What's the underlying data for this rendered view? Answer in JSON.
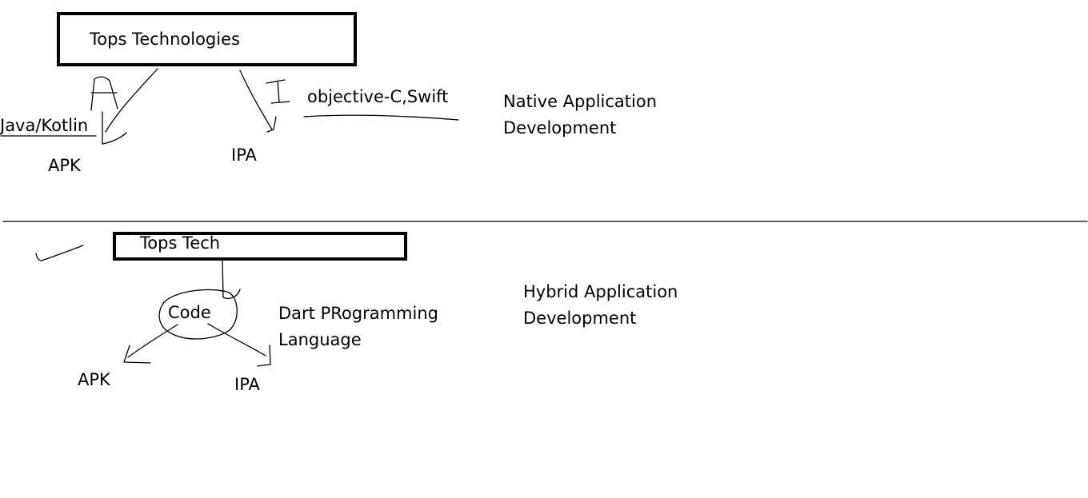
{
  "native_section": {
    "box_label": "Tops Technologies",
    "android_letter": "A",
    "ios_letter": "I",
    "android_language": "Java/Kotlin",
    "android_output": "APK",
    "ios_output": "IPA",
    "ios_languages": "objective-C,Swift",
    "title_line1": "Native Application",
    "title_line2": "Development"
  },
  "hybrid_section": {
    "box_label": "Tops Tech",
    "code_label": "Code",
    "language_line1": "Dart PRogramming",
    "language_line2": "Language",
    "android_output": "APK",
    "ios_output": "IPA",
    "title_line1": "Hybrid Application",
    "title_line2": "Development"
  }
}
